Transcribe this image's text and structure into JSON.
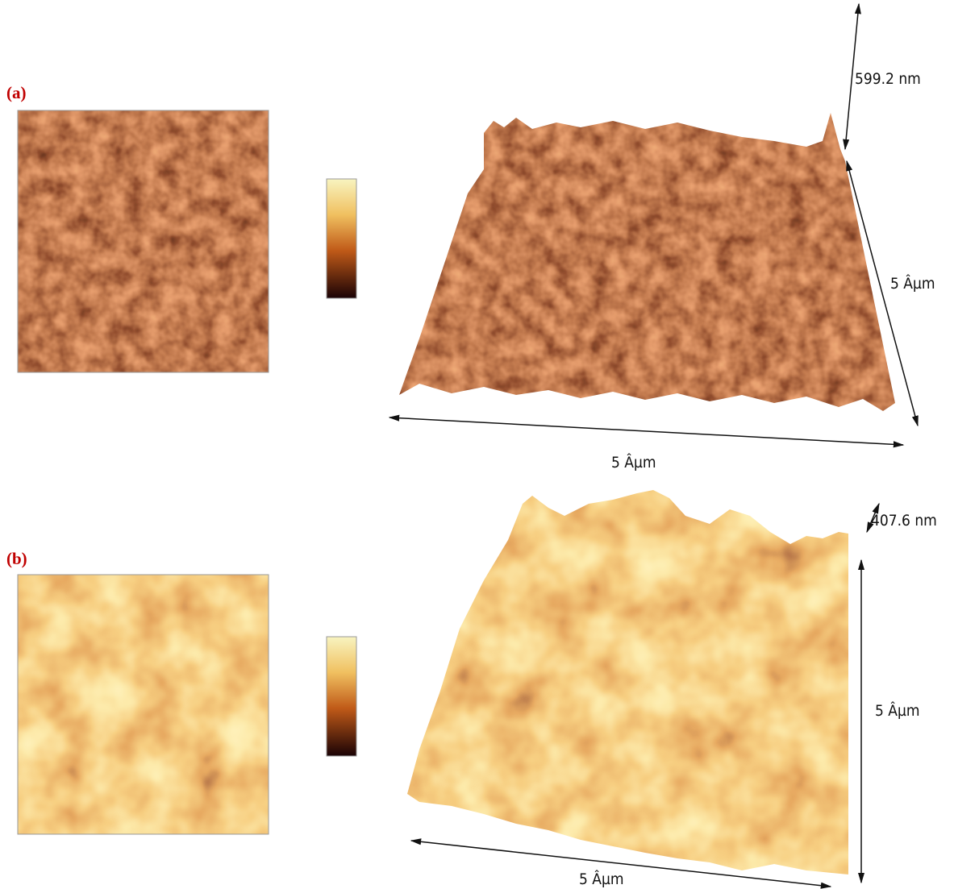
{
  "panels": [
    {
      "label": "(a)",
      "height": "599.2 nm",
      "depth": "5 Âµm",
      "width": "5 Âµm"
    },
    {
      "label": "(b)",
      "height": "407.6 nm",
      "depth": "5 Âµm",
      "width": "5 Âµm"
    }
  ]
}
